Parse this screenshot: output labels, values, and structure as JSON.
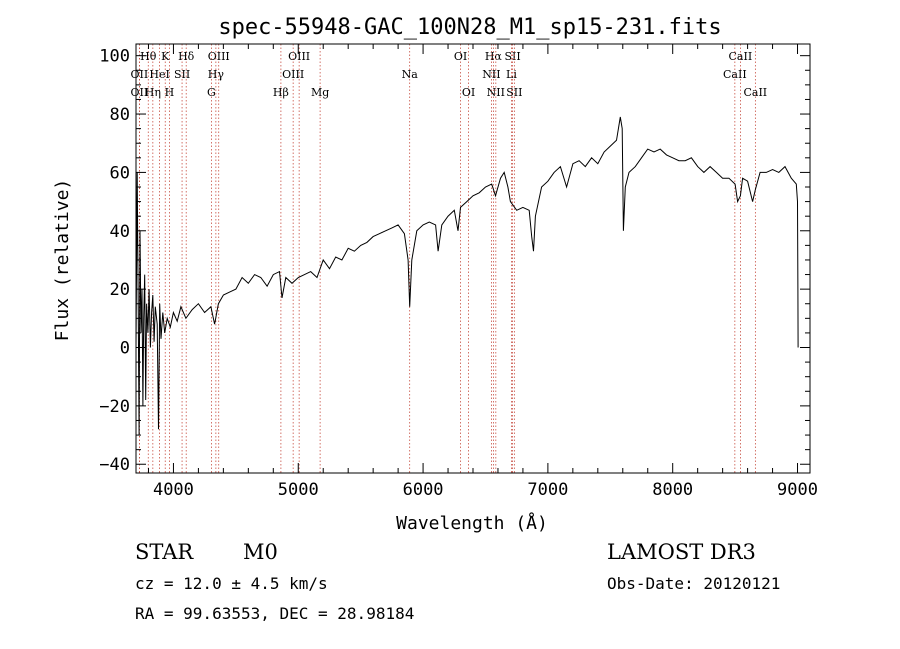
{
  "chart_data": {
    "type": "line",
    "title": "spec-55948-GAC_100N28_M1_sp15-231.fits",
    "xlabel": "Wavelength (Å)",
    "ylabel": "Flux (relative)",
    "xlim": [
      3700,
      9100
    ],
    "ylim": [
      -43,
      104
    ],
    "x_ticks": [
      4000,
      5000,
      6000,
      7000,
      8000,
      9000
    ],
    "y_ticks": [
      -40,
      -20,
      0,
      20,
      40,
      60,
      80,
      100
    ],
    "series": [
      {
        "color": "#000000",
        "points": [
          [
            3700,
            0
          ],
          [
            3710,
            60
          ],
          [
            3718,
            15
          ],
          [
            3725,
            -30
          ],
          [
            3732,
            40
          ],
          [
            3740,
            5
          ],
          [
            3748,
            20
          ],
          [
            3755,
            -20
          ],
          [
            3762,
            10
          ],
          [
            3770,
            25
          ],
          [
            3778,
            -18
          ],
          [
            3785,
            15
          ],
          [
            3795,
            5
          ],
          [
            3805,
            20
          ],
          [
            3815,
            0
          ],
          [
            3825,
            12
          ],
          [
            3835,
            18
          ],
          [
            3845,
            2
          ],
          [
            3855,
            14
          ],
          [
            3870,
            8
          ],
          [
            3880,
            -28
          ],
          [
            3890,
            15
          ],
          [
            3900,
            3
          ],
          [
            3915,
            12
          ],
          [
            3930,
            5
          ],
          [
            3950,
            10
          ],
          [
            3975,
            7
          ],
          [
            4000,
            12
          ],
          [
            4030,
            9
          ],
          [
            4060,
            14
          ],
          [
            4100,
            10
          ],
          [
            4150,
            13
          ],
          [
            4200,
            15
          ],
          [
            4250,
            12
          ],
          [
            4300,
            14
          ],
          [
            4330,
            8
          ],
          [
            4360,
            15
          ],
          [
            4400,
            18
          ],
          [
            4450,
            19
          ],
          [
            4500,
            20
          ],
          [
            4550,
            24
          ],
          [
            4600,
            22
          ],
          [
            4650,
            25
          ],
          [
            4700,
            24
          ],
          [
            4750,
            21
          ],
          [
            4800,
            25
          ],
          [
            4850,
            26
          ],
          [
            4870,
            17
          ],
          [
            4900,
            24
          ],
          [
            4950,
            22
          ],
          [
            5000,
            24
          ],
          [
            5050,
            25
          ],
          [
            5100,
            26
          ],
          [
            5150,
            24
          ],
          [
            5200,
            30
          ],
          [
            5250,
            27
          ],
          [
            5300,
            31
          ],
          [
            5350,
            30
          ],
          [
            5400,
            34
          ],
          [
            5450,
            33
          ],
          [
            5500,
            35
          ],
          [
            5550,
            36
          ],
          [
            5600,
            38
          ],
          [
            5650,
            39
          ],
          [
            5700,
            40
          ],
          [
            5750,
            41
          ],
          [
            5800,
            42
          ],
          [
            5850,
            39
          ],
          [
            5880,
            30
          ],
          [
            5893,
            14
          ],
          [
            5910,
            30
          ],
          [
            5950,
            40
          ],
          [
            6000,
            42
          ],
          [
            6050,
            43
          ],
          [
            6100,
            42
          ],
          [
            6120,
            33
          ],
          [
            6150,
            42
          ],
          [
            6200,
            45
          ],
          [
            6250,
            47
          ],
          [
            6280,
            40
          ],
          [
            6300,
            48
          ],
          [
            6350,
            50
          ],
          [
            6400,
            52
          ],
          [
            6450,
            53
          ],
          [
            6500,
            55
          ],
          [
            6550,
            56
          ],
          [
            6580,
            52
          ],
          [
            6620,
            58
          ],
          [
            6650,
            60
          ],
          [
            6680,
            55
          ],
          [
            6700,
            50
          ],
          [
            6750,
            47
          ],
          [
            6800,
            48
          ],
          [
            6850,
            47
          ],
          [
            6870,
            38
          ],
          [
            6885,
            33
          ],
          [
            6900,
            45
          ],
          [
            6950,
            55
          ],
          [
            7000,
            57
          ],
          [
            7050,
            60
          ],
          [
            7100,
            62
          ],
          [
            7150,
            55
          ],
          [
            7200,
            63
          ],
          [
            7250,
            64
          ],
          [
            7300,
            62
          ],
          [
            7350,
            65
          ],
          [
            7400,
            63
          ],
          [
            7450,
            67
          ],
          [
            7500,
            69
          ],
          [
            7550,
            71
          ],
          [
            7580,
            79
          ],
          [
            7595,
            75
          ],
          [
            7605,
            40
          ],
          [
            7620,
            55
          ],
          [
            7650,
            60
          ],
          [
            7700,
            62
          ],
          [
            7750,
            65
          ],
          [
            7800,
            68
          ],
          [
            7850,
            67
          ],
          [
            7900,
            68
          ],
          [
            7950,
            66
          ],
          [
            8000,
            65
          ],
          [
            8050,
            64
          ],
          [
            8100,
            64
          ],
          [
            8150,
            65
          ],
          [
            8200,
            62
          ],
          [
            8250,
            60
          ],
          [
            8300,
            62
          ],
          [
            8350,
            60
          ],
          [
            8400,
            58
          ],
          [
            8450,
            58
          ],
          [
            8500,
            56
          ],
          [
            8520,
            50
          ],
          [
            8542,
            52
          ],
          [
            8560,
            58
          ],
          [
            8600,
            57
          ],
          [
            8640,
            50
          ],
          [
            8662,
            54
          ],
          [
            8700,
            60
          ],
          [
            8750,
            60
          ],
          [
            8800,
            61
          ],
          [
            8850,
            60
          ],
          [
            8900,
            62
          ],
          [
            8950,
            58
          ],
          [
            8990,
            56
          ],
          [
            9000,
            50
          ],
          [
            9003,
            20
          ],
          [
            9005,
            0
          ]
        ]
      }
    ],
    "line_markers": [
      {
        "label": "Hθ",
        "x": 3798,
        "row": 0
      },
      {
        "label": "OII",
        "x": 3727,
        "row": 1
      },
      {
        "label": "OII",
        "x": 3727,
        "row": 2
      },
      {
        "label": "HeI",
        "x": 3889,
        "row": 1
      },
      {
        "label": "K",
        "x": 3934,
        "row": 0
      },
      {
        "label": "H",
        "x": 3968,
        "row": 2
      },
      {
        "label": "Hη",
        "x": 3835,
        "row": 2
      },
      {
        "label": "Hδ",
        "x": 4102,
        "row": 0
      },
      {
        "label": "SII",
        "x": 4069,
        "row": 1
      },
      {
        "label": "OIII",
        "x": 4363,
        "row": 0
      },
      {
        "label": "Hγ",
        "x": 4340,
        "row": 1
      },
      {
        "label": "G",
        "x": 4304,
        "row": 2
      },
      {
        "label": "Hβ",
        "x": 4861,
        "row": 2
      },
      {
        "label": "OIII",
        "x": 5007,
        "row": 0
      },
      {
        "label": "OIII",
        "x": 4959,
        "row": 1
      },
      {
        "label": "Mg",
        "x": 5175,
        "row": 2
      },
      {
        "label": "Na",
        "x": 5893,
        "row": 1
      },
      {
        "label": "OI",
        "x": 6300,
        "row": 0
      },
      {
        "label": "OI",
        "x": 6364,
        "row": 2
      },
      {
        "label": "Hα",
        "x": 6563,
        "row": 0
      },
      {
        "label": "NII",
        "x": 6548,
        "row": 1
      },
      {
        "label": "NII",
        "x": 6583,
        "row": 2
      },
      {
        "label": "SII",
        "x": 6717,
        "row": 0
      },
      {
        "label": "Li",
        "x": 6708,
        "row": 1
      },
      {
        "label": "SII",
        "x": 6731,
        "row": 2
      },
      {
        "label": "CaII",
        "x": 8542,
        "row": 0
      },
      {
        "label": "CaII",
        "x": 8498,
        "row": 1
      },
      {
        "label": "CaII",
        "x": 8662,
        "row": 2
      }
    ]
  },
  "info": {
    "class": "STAR",
    "subclass": "M0",
    "survey": "LAMOST DR3",
    "cz": "cz = 12.0 ± 4.5 km/s",
    "obs_date": "Obs-Date: 20120121",
    "coords": "RA =  99.63553, DEC =  28.98184"
  }
}
